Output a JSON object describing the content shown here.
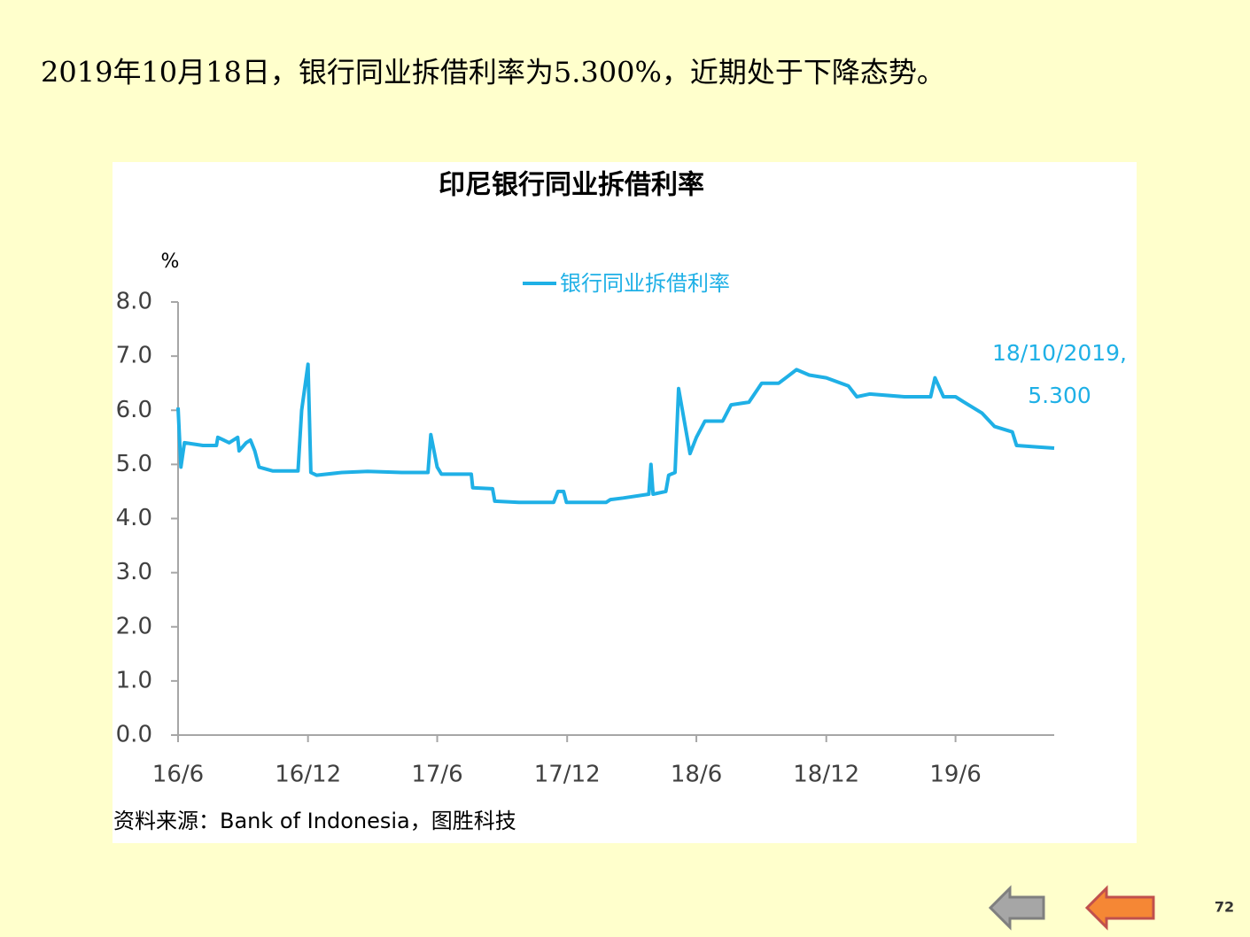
{
  "header": {
    "text": "2019年10月18日，银行同业拆借利率为5.300%，近期处于下降态势。"
  },
  "footer": {
    "page": "72"
  },
  "chart_data": {
    "type": "line",
    "title": "印尼银行同业拆借利率",
    "ylabel": "%",
    "source": "资料来源：Bank of Indonesia，图胜科技",
    "annotation": [
      "18/10/2019,",
      "5.300"
    ],
    "legend": "top",
    "x": [
      "2016-06-01",
      "2016-06-05",
      "2016-06-10",
      "2016-07-06",
      "2016-07-25",
      "2016-07-27",
      "2016-08-12",
      "2016-08-24",
      "2016-08-26",
      "2016-09-05",
      "2016-09-11",
      "2016-09-17",
      "2016-09-23",
      "2016-10-12",
      "2016-11-17",
      "2016-11-22",
      "2016-12-01",
      "2016-12-05",
      "2016-12-13",
      "2017-01-18",
      "2017-02-23",
      "2017-04-12",
      "2017-05-19",
      "2017-05-23",
      "2017-06-01",
      "2017-06-07",
      "2017-07-19",
      "2017-07-21",
      "2017-08-18",
      "2017-08-21",
      "2017-09-24",
      "2017-11-12",
      "2017-11-18",
      "2017-11-26",
      "2017-11-30",
      "2018-01-25",
      "2018-01-31",
      "2018-02-18",
      "2018-03-26",
      "2018-03-29",
      "2018-04-01",
      "2018-04-19",
      "2018-04-23",
      "2018-05-02",
      "2018-05-07",
      "2018-05-23",
      "2018-06-01",
      "2018-06-13",
      "2018-07-08",
      "2018-07-20",
      "2018-08-14",
      "2018-09-01",
      "2018-09-25",
      "2018-10-20",
      "2018-11-07",
      "2018-12-01",
      "2019-01-01",
      "2019-01-13",
      "2019-01-31",
      "2019-03-21",
      "2019-04-27",
      "2019-05-03",
      "2019-05-15",
      "2019-06-01",
      "2019-06-13",
      "2019-07-08",
      "2019-07-26",
      "2019-08-20",
      "2019-08-26",
      "2019-09-25",
      "2019-10-18"
    ],
    "series": [
      {
        "name": "银行同业拆借利率",
        "color": "#1fb0e6",
        "values": [
          6.05,
          4.95,
          5.4,
          5.35,
          5.35,
          5.5,
          5.4,
          5.5,
          5.25,
          5.4,
          5.45,
          5.25,
          4.95,
          4.88,
          4.88,
          6.0,
          6.85,
          4.85,
          4.8,
          4.85,
          4.87,
          4.85,
          4.85,
          5.55,
          4.95,
          4.82,
          4.82,
          4.57,
          4.55,
          4.32,
          4.3,
          4.3,
          4.5,
          4.5,
          4.3,
          4.3,
          4.35,
          4.38,
          4.45,
          5.0,
          4.45,
          4.5,
          4.8,
          4.85,
          6.4,
          5.2,
          5.5,
          5.8,
          5.8,
          6.1,
          6.15,
          6.5,
          6.5,
          6.75,
          6.65,
          6.6,
          6.45,
          6.25,
          6.3,
          6.25,
          6.25,
          6.6,
          6.25,
          6.25,
          6.15,
          5.95,
          5.7,
          5.6,
          5.35,
          5.32,
          5.3
        ]
      }
    ],
    "xlim": [
      "2016-06-01",
      "2019-10-18"
    ],
    "xticks": [
      {
        "value": "2016-06-01",
        "label": "16/6"
      },
      {
        "value": "2016-12-01",
        "label": "16/12"
      },
      {
        "value": "2017-06-01",
        "label": "17/6"
      },
      {
        "value": "2017-12-01",
        "label": "17/12"
      },
      {
        "value": "2018-06-01",
        "label": "18/6"
      },
      {
        "value": "2018-12-01",
        "label": "18/12"
      },
      {
        "value": "2019-06-01",
        "label": "19/6"
      }
    ],
    "ylim": [
      0,
      8
    ],
    "yticks": [
      {
        "value": 0,
        "label": "0.0"
      },
      {
        "value": 1,
        "label": "1.0"
      },
      {
        "value": 2,
        "label": "2.0"
      },
      {
        "value": 3,
        "label": "3.0"
      },
      {
        "value": 4,
        "label": "4.0"
      },
      {
        "value": 5,
        "label": "5.0"
      },
      {
        "value": 6,
        "label": "6.0"
      },
      {
        "value": 7,
        "label": "7.0"
      },
      {
        "value": 8,
        "label": "8.0"
      }
    ]
  }
}
